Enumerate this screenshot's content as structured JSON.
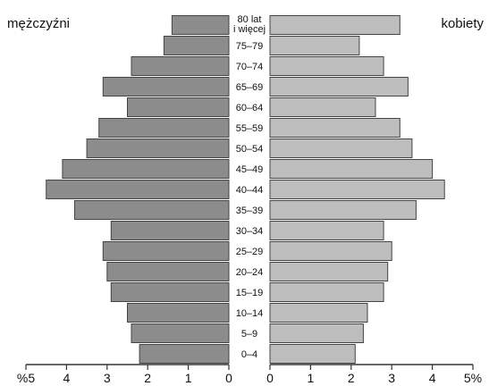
{
  "chart_data": {
    "type": "bar",
    "orientation": "horizontal",
    "layout": "population-pyramid",
    "series": [
      {
        "name": "mężczyźni",
        "values": [
          2.2,
          2.4,
          2.5,
          2.9,
          3.0,
          3.1,
          2.9,
          3.8,
          4.5,
          4.1,
          3.5,
          3.2,
          2.5,
          3.1,
          2.4,
          1.6,
          1.4
        ]
      },
      {
        "name": "kobiety",
        "values": [
          2.1,
          2.3,
          2.4,
          2.8,
          2.9,
          3.0,
          2.8,
          3.6,
          4.3,
          4.0,
          3.5,
          3.2,
          2.6,
          3.4,
          2.8,
          2.2,
          3.2
        ]
      }
    ],
    "categories": [
      "0–4",
      "5–9",
      "10–14",
      "15–19",
      "20–24",
      "25–29",
      "30–34",
      "35–39",
      "40–44",
      "45–49",
      "50–54",
      "55–59",
      "60–64",
      "65–69",
      "70–74",
      "75–79",
      [
        "80 lat",
        "i więcej"
      ]
    ],
    "left_label": "mężczyźni",
    "right_label": "kobiety",
    "left_ticks": [
      "%5",
      "4",
      "3",
      "2",
      "1",
      "0"
    ],
    "right_ticks": [
      "0",
      "1",
      "2",
      "3",
      "4",
      "5%"
    ],
    "xlim": [
      0,
      5
    ],
    "grid": false,
    "colors": {
      "male_bar": "#8c8c8c",
      "female_bar": "#bdbdbd",
      "bar_stroke": "#444444",
      "axis": "#333333",
      "text": "#111111"
    }
  }
}
